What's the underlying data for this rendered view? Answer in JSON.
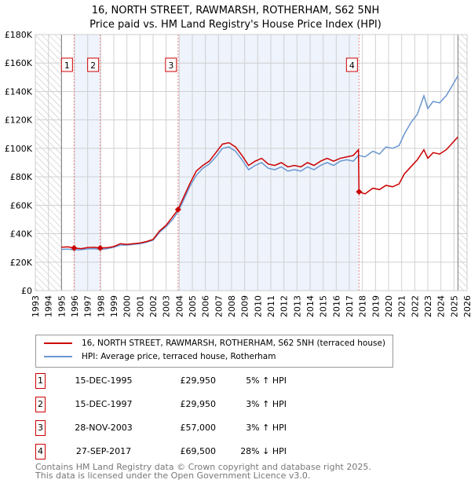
{
  "chart_data": {
    "type": "line",
    "title": "16, NORTH STREET, RAWMARSH, ROTHERHAM, S62 5NH",
    "subtitle": "Price paid vs. HM Land Registry's House Price Index (HPI)",
    "xlim": [
      1993,
      2026
    ],
    "ylim": [
      0,
      180000
    ],
    "x_ticks": [
      "1993",
      "1994",
      "1995",
      "1996",
      "1997",
      "1998",
      "1999",
      "2000",
      "2001",
      "2002",
      "2003",
      "2004",
      "2005",
      "2006",
      "2007",
      "2008",
      "2009",
      "2010",
      "2011",
      "2012",
      "2013",
      "2014",
      "2015",
      "2016",
      "2017",
      "2018",
      "2019",
      "2020",
      "2021",
      "2022",
      "2023",
      "2024",
      "2025",
      "2026"
    ],
    "y_ticks": [
      {
        "v": 0,
        "label": "£0"
      },
      {
        "v": 20000,
        "label": "£20K"
      },
      {
        "v": 40000,
        "label": "£40K"
      },
      {
        "v": 60000,
        "label": "£60K"
      },
      {
        "v": 80000,
        "label": "£80K"
      },
      {
        "v": 100000,
        "label": "£100K"
      },
      {
        "v": 120000,
        "label": "£120K"
      },
      {
        "v": 140000,
        "label": "£140K"
      },
      {
        "v": 160000,
        "label": "£160K"
      },
      {
        "v": 180000,
        "label": "£180K"
      }
    ],
    "grid": true,
    "legend_placement": "below",
    "series": [
      {
        "name": "16, NORTH STREET, RAWMARSH, ROTHERHAM, S62 5NH (terraced house)",
        "color": "#cc0000",
        "points": [
          [
            1995,
            30500
          ],
          [
            1995.5,
            30800
          ],
          [
            1995.96,
            29950
          ],
          [
            1996.5,
            29500
          ],
          [
            1997,
            30300
          ],
          [
            1997.5,
            30500
          ],
          [
            1997.96,
            29950
          ],
          [
            1998.5,
            30200
          ],
          [
            1999,
            31000
          ],
          [
            1999.5,
            33000
          ],
          [
            2000,
            32500
          ],
          [
            2000.5,
            33000
          ],
          [
            2001,
            33500
          ],
          [
            2001.5,
            34500
          ],
          [
            2002,
            36000
          ],
          [
            2002.5,
            42000
          ],
          [
            2003,
            46000
          ],
          [
            2003.5,
            52000
          ],
          [
            2003.91,
            57000
          ],
          [
            2004.3,
            65000
          ],
          [
            2004.8,
            75000
          ],
          [
            2005.3,
            84000
          ],
          [
            2005.8,
            88000
          ],
          [
            2006.3,
            91000
          ],
          [
            2006.8,
            97000
          ],
          [
            2007.3,
            103000
          ],
          [
            2007.8,
            104000
          ],
          [
            2008.3,
            101000
          ],
          [
            2008.8,
            95000
          ],
          [
            2009.3,
            88000
          ],
          [
            2009.8,
            91000
          ],
          [
            2010.3,
            93000
          ],
          [
            2010.8,
            89000
          ],
          [
            2011.3,
            88000
          ],
          [
            2011.8,
            90000
          ],
          [
            2012.3,
            87000
          ],
          [
            2012.8,
            88000
          ],
          [
            2013.3,
            87000
          ],
          [
            2013.8,
            90000
          ],
          [
            2014.3,
            88000
          ],
          [
            2014.8,
            91000
          ],
          [
            2015.3,
            93000
          ],
          [
            2015.8,
            91000
          ],
          [
            2016.3,
            93000
          ],
          [
            2016.8,
            94000
          ],
          [
            2017.3,
            95000
          ],
          [
            2017.7,
            99000
          ],
          [
            2017.74,
            69500
          ],
          [
            2018.2,
            68000
          ],
          [
            2018.8,
            72000
          ],
          [
            2019.3,
            71000
          ],
          [
            2019.8,
            74000
          ],
          [
            2020.3,
            73000
          ],
          [
            2020.8,
            75000
          ],
          [
            2021.2,
            82000
          ],
          [
            2021.7,
            87000
          ],
          [
            2022.2,
            92000
          ],
          [
            2022.7,
            99000
          ],
          [
            2023.0,
            93000
          ],
          [
            2023.4,
            97000
          ],
          [
            2023.9,
            96000
          ],
          [
            2024.4,
            99000
          ],
          [
            2024.8,
            103000
          ],
          [
            2025.3,
            108000
          ]
        ]
      },
      {
        "name": "HPI: Average price, terraced house, Rotherham",
        "color": "#6a96d0",
        "points": [
          [
            1995,
            29000
          ],
          [
            1995.5,
            29200
          ],
          [
            1996,
            28600
          ],
          [
            1996.5,
            28800
          ],
          [
            1997,
            29300
          ],
          [
            1997.5,
            29500
          ],
          [
            1998,
            29000
          ],
          [
            1998.5,
            29500
          ],
          [
            1999,
            30500
          ],
          [
            1999.5,
            32000
          ],
          [
            2000,
            32000
          ],
          [
            2000.5,
            32500
          ],
          [
            2001,
            33000
          ],
          [
            2001.5,
            34000
          ],
          [
            2002,
            35500
          ],
          [
            2002.5,
            41000
          ],
          [
            2003,
            45000
          ],
          [
            2003.5,
            50000
          ],
          [
            2003.91,
            55500
          ],
          [
            2004.3,
            63000
          ],
          [
            2004.8,
            73000
          ],
          [
            2005.3,
            81000
          ],
          [
            2005.8,
            86000
          ],
          [
            2006.3,
            89000
          ],
          [
            2006.8,
            94000
          ],
          [
            2007.3,
            100000
          ],
          [
            2007.8,
            101000
          ],
          [
            2008.3,
            98000
          ],
          [
            2008.8,
            92000
          ],
          [
            2009.3,
            85000
          ],
          [
            2009.8,
            88000
          ],
          [
            2010.3,
            90000
          ],
          [
            2010.8,
            86000
          ],
          [
            2011.3,
            85000
          ],
          [
            2011.8,
            87000
          ],
          [
            2012.3,
            84000
          ],
          [
            2012.8,
            85000
          ],
          [
            2013.3,
            84000
          ],
          [
            2013.8,
            87000
          ],
          [
            2014.3,
            85000
          ],
          [
            2014.8,
            88000
          ],
          [
            2015.3,
            90000
          ],
          [
            2015.8,
            88000
          ],
          [
            2016.3,
            91000
          ],
          [
            2016.8,
            92000
          ],
          [
            2017.3,
            91000
          ],
          [
            2017.7,
            95000
          ],
          [
            2018.2,
            94000
          ],
          [
            2018.8,
            98000
          ],
          [
            2019.3,
            96000
          ],
          [
            2019.8,
            101000
          ],
          [
            2020.3,
            100000
          ],
          [
            2020.8,
            102000
          ],
          [
            2021.2,
            110000
          ],
          [
            2021.7,
            118000
          ],
          [
            2022.2,
            124000
          ],
          [
            2022.7,
            137000
          ],
          [
            2023.0,
            128000
          ],
          [
            2023.4,
            133000
          ],
          [
            2023.9,
            132000
          ],
          [
            2024.4,
            137000
          ],
          [
            2024.8,
            143000
          ],
          [
            2025.3,
            151000
          ]
        ]
      }
    ],
    "sales": [
      {
        "n": "1",
        "x": 1995.96,
        "v": 29950
      },
      {
        "n": "2",
        "x": 1997.96,
        "v": 29950
      },
      {
        "n": "3",
        "x": 2003.91,
        "v": 57000
      },
      {
        "n": "4",
        "x": 2017.74,
        "v": 69500
      }
    ],
    "shaded": [
      [
        1995.96,
        1997.96
      ],
      [
        2003.91,
        2017.74
      ]
    ],
    "hatched": [
      [
        1993,
        1995
      ],
      [
        2025.3,
        2026
      ]
    ]
  },
  "legend": {
    "property": "16, NORTH STREET, RAWMARSH, ROTHERHAM, S62 5NH (terraced house)",
    "hpi": "HPI: Average price, terraced house, Rotherham"
  },
  "transactions": [
    {
      "n": "1",
      "date": "15-DEC-1995",
      "price": "£29,950",
      "hpi": "5% ↑ HPI"
    },
    {
      "n": "2",
      "date": "15-DEC-1997",
      "price": "£29,950",
      "hpi": "3% ↑ HPI"
    },
    {
      "n": "3",
      "date": "28-NOV-2003",
      "price": "£57,000",
      "hpi": "3% ↑ HPI"
    },
    {
      "n": "4",
      "date": "27-SEP-2017",
      "price": "£69,500",
      "hpi": "28% ↓ HPI"
    }
  ],
  "footer": {
    "line1": "Contains HM Land Registry data © Crown copyright and database right 2025.",
    "line2": "This data is licensed under the Open Government Licence v3.0."
  }
}
